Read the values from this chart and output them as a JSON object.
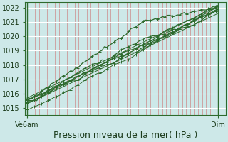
{
  "title": "Pression niveau de la mer( hPa )",
  "bg_color": "#cde8e8",
  "plot_bg_color": "#cde8e8",
  "line_color": "#2d6a2d",
  "ylim": [
    1014.5,
    1022.4
  ],
  "yticks": [
    1015,
    1016,
    1017,
    1018,
    1019,
    1020,
    1021,
    1022
  ],
  "x_labels": [
    "Ve6am",
    "Dim"
  ],
  "title_fontsize": 9,
  "tick_fontsize": 7,
  "vline_color": "#cc8888",
  "hline_color": "#ffffff",
  "border_color": "#2d6a2d"
}
